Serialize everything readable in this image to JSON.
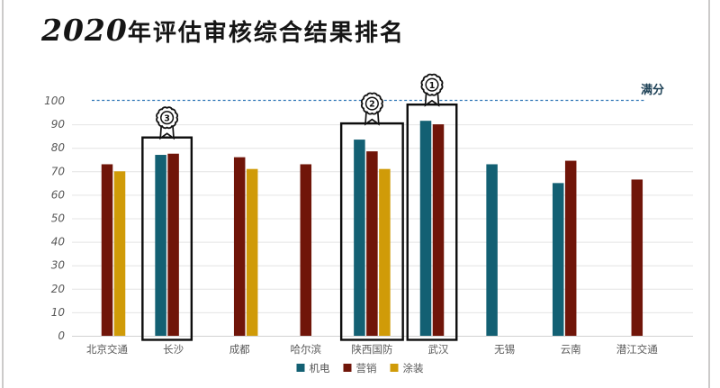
{
  "slide": {
    "title_year": "2020",
    "title_rest": "年评估审核综合结果排名"
  },
  "chart_data": {
    "type": "bar",
    "title": "2020年评估审核综合结果排名",
    "categories": [
      "北京交通",
      "长沙",
      "成都",
      "哈尔滨",
      "陕西国防",
      "武汉",
      "无锡",
      "云南",
      "潜江交通"
    ],
    "series": [
      {
        "name": "机电",
        "color": "#136073",
        "values": [
          null,
          77,
          null,
          null,
          83.5,
          91.5,
          73,
          65,
          null
        ]
      },
      {
        "name": "营销",
        "color": "#701509",
        "values": [
          73,
          77.5,
          76,
          73,
          78.5,
          90,
          null,
          74.5,
          66.5
        ]
      },
      {
        "name": "涂装",
        "color": "#D09B08",
        "values": [
          70,
          null,
          71,
          null,
          71,
          null,
          null,
          null,
          null
        ]
      }
    ],
    "ylim": [
      0,
      100
    ],
    "yticks": [
      0,
      10,
      20,
      30,
      40,
      50,
      60,
      70,
      80,
      90,
      100
    ],
    "grid": true,
    "legend_position": "bottom",
    "reference_line": {
      "value": 100,
      "label": "满分",
      "line_color": "#2E75B6",
      "label_color": "#1F4257"
    },
    "highlights": [
      {
        "category": "武汉",
        "rank": "1"
      },
      {
        "category": "陕西国防",
        "rank": "2"
      },
      {
        "category": "长沙",
        "rank": "3"
      }
    ],
    "colors": {
      "grid": "#E4E4E4",
      "axis_line": "#D2D2D2",
      "axis_text": "#595959",
      "box": "#0D0D0D",
      "badge": "#111111"
    }
  }
}
